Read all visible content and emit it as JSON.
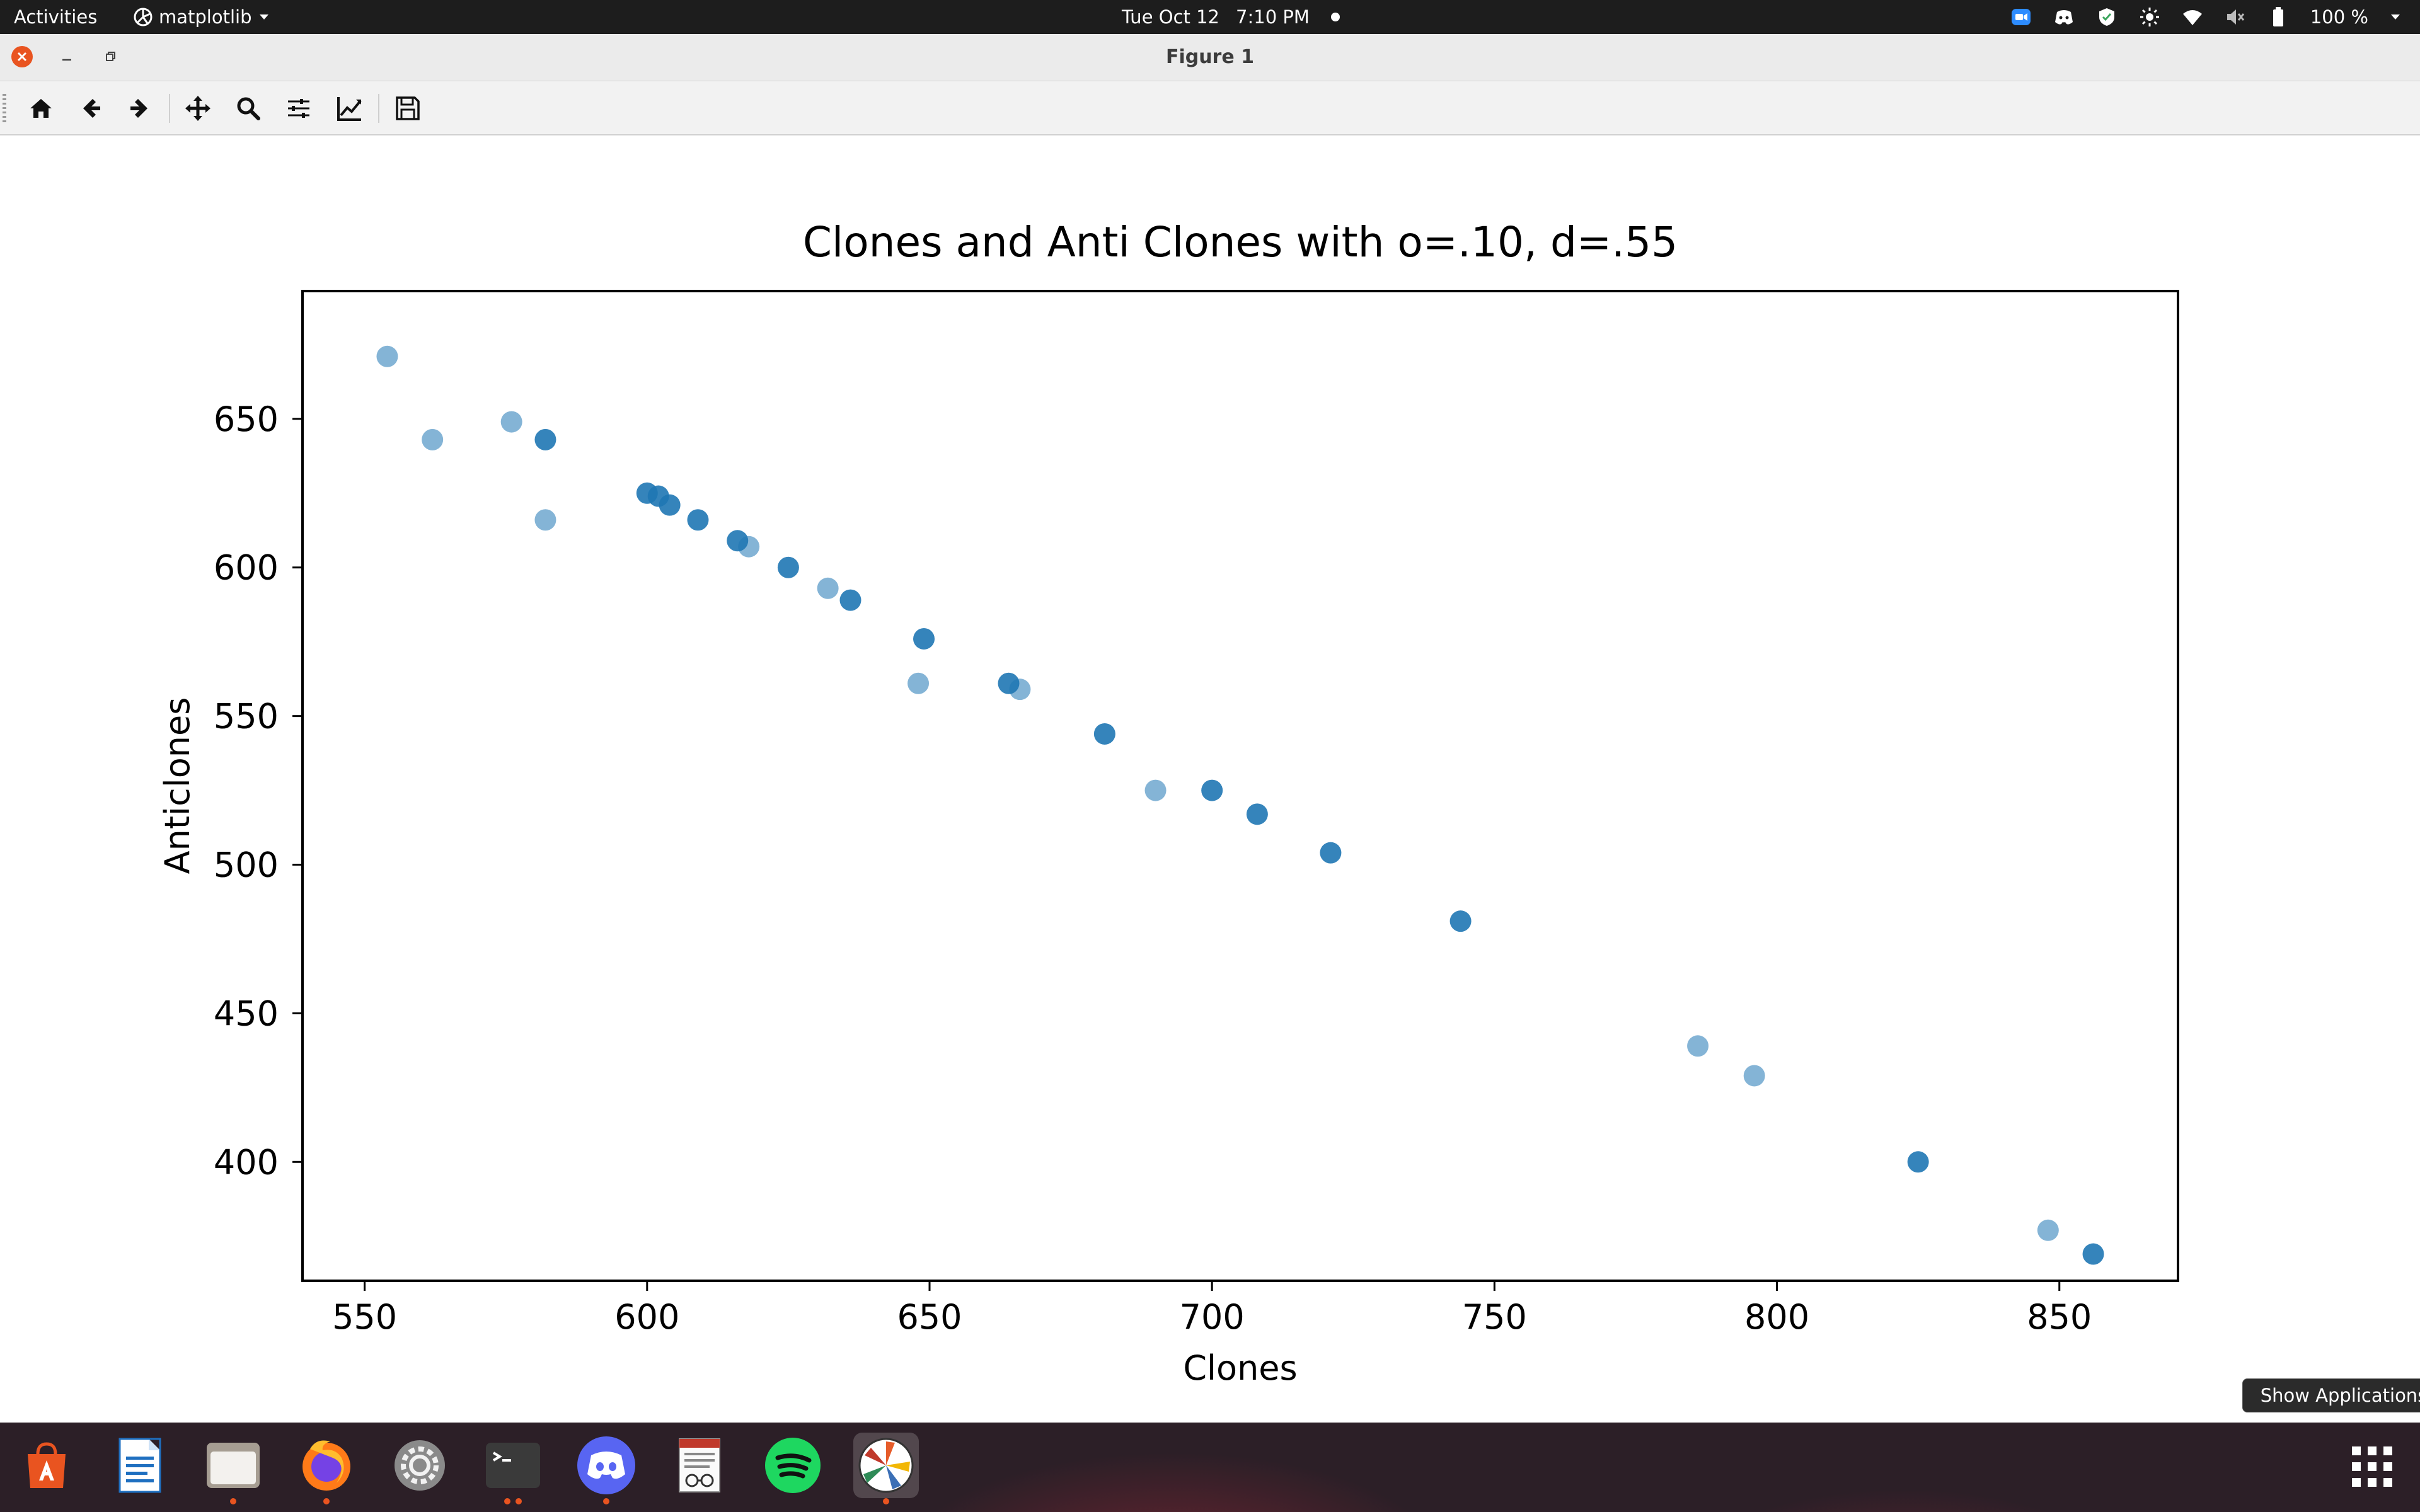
{
  "topbar": {
    "activities": "Activities",
    "app_menu": "matplotlib",
    "date": "Tue Oct 12",
    "time": "7:10 PM",
    "battery": "100 %"
  },
  "window": {
    "title": "Figure 1"
  },
  "toolbar": {
    "buttons": [
      "home-icon",
      "back-icon",
      "forward-icon",
      "pan-icon",
      "zoom-icon",
      "subplots-icon",
      "edit-axis-icon",
      "save-icon"
    ]
  },
  "chart_data": {
    "type": "scatter",
    "title": "Clones and Anti Clones with o=.10, d=.55",
    "xlabel": "Clones",
    "ylabel": "Anticlones",
    "xlim": [
      539,
      871
    ],
    "ylim": [
      360,
      693
    ],
    "xticks": [
      550,
      600,
      650,
      700,
      750,
      800,
      850
    ],
    "yticks": [
      400,
      450,
      500,
      550,
      600,
      650
    ],
    "grid": false,
    "marker_color": "#1f77b4",
    "series": [
      {
        "alpha": 0.55,
        "x": [
          554,
          562,
          576,
          582,
          618,
          632,
          648,
          666,
          690,
          786,
          796,
          848
        ],
        "y": [
          671,
          643,
          649,
          616,
          607,
          593,
          561,
          559,
          525,
          439,
          429,
          377
        ]
      },
      {
        "alpha": 0.9,
        "x": [
          582,
          600,
          602,
          604,
          609,
          616,
          625,
          636,
          649,
          664,
          681,
          700,
          708,
          721,
          744,
          825,
          856
        ],
        "y": [
          643,
          625,
          624,
          621,
          616,
          609,
          600,
          589,
          576,
          561,
          544,
          525,
          517,
          504,
          481,
          400,
          369
        ]
      }
    ]
  },
  "tooltip": "Show Applications",
  "dock": {
    "apps": [
      "app-center-icon",
      "writer-icon",
      "files-icon",
      "firefox-icon",
      "settings-icon",
      "terminal-icon",
      "discord-icon",
      "document-viewer-icon",
      "spotify-icon",
      "matplotlib-icon"
    ]
  }
}
